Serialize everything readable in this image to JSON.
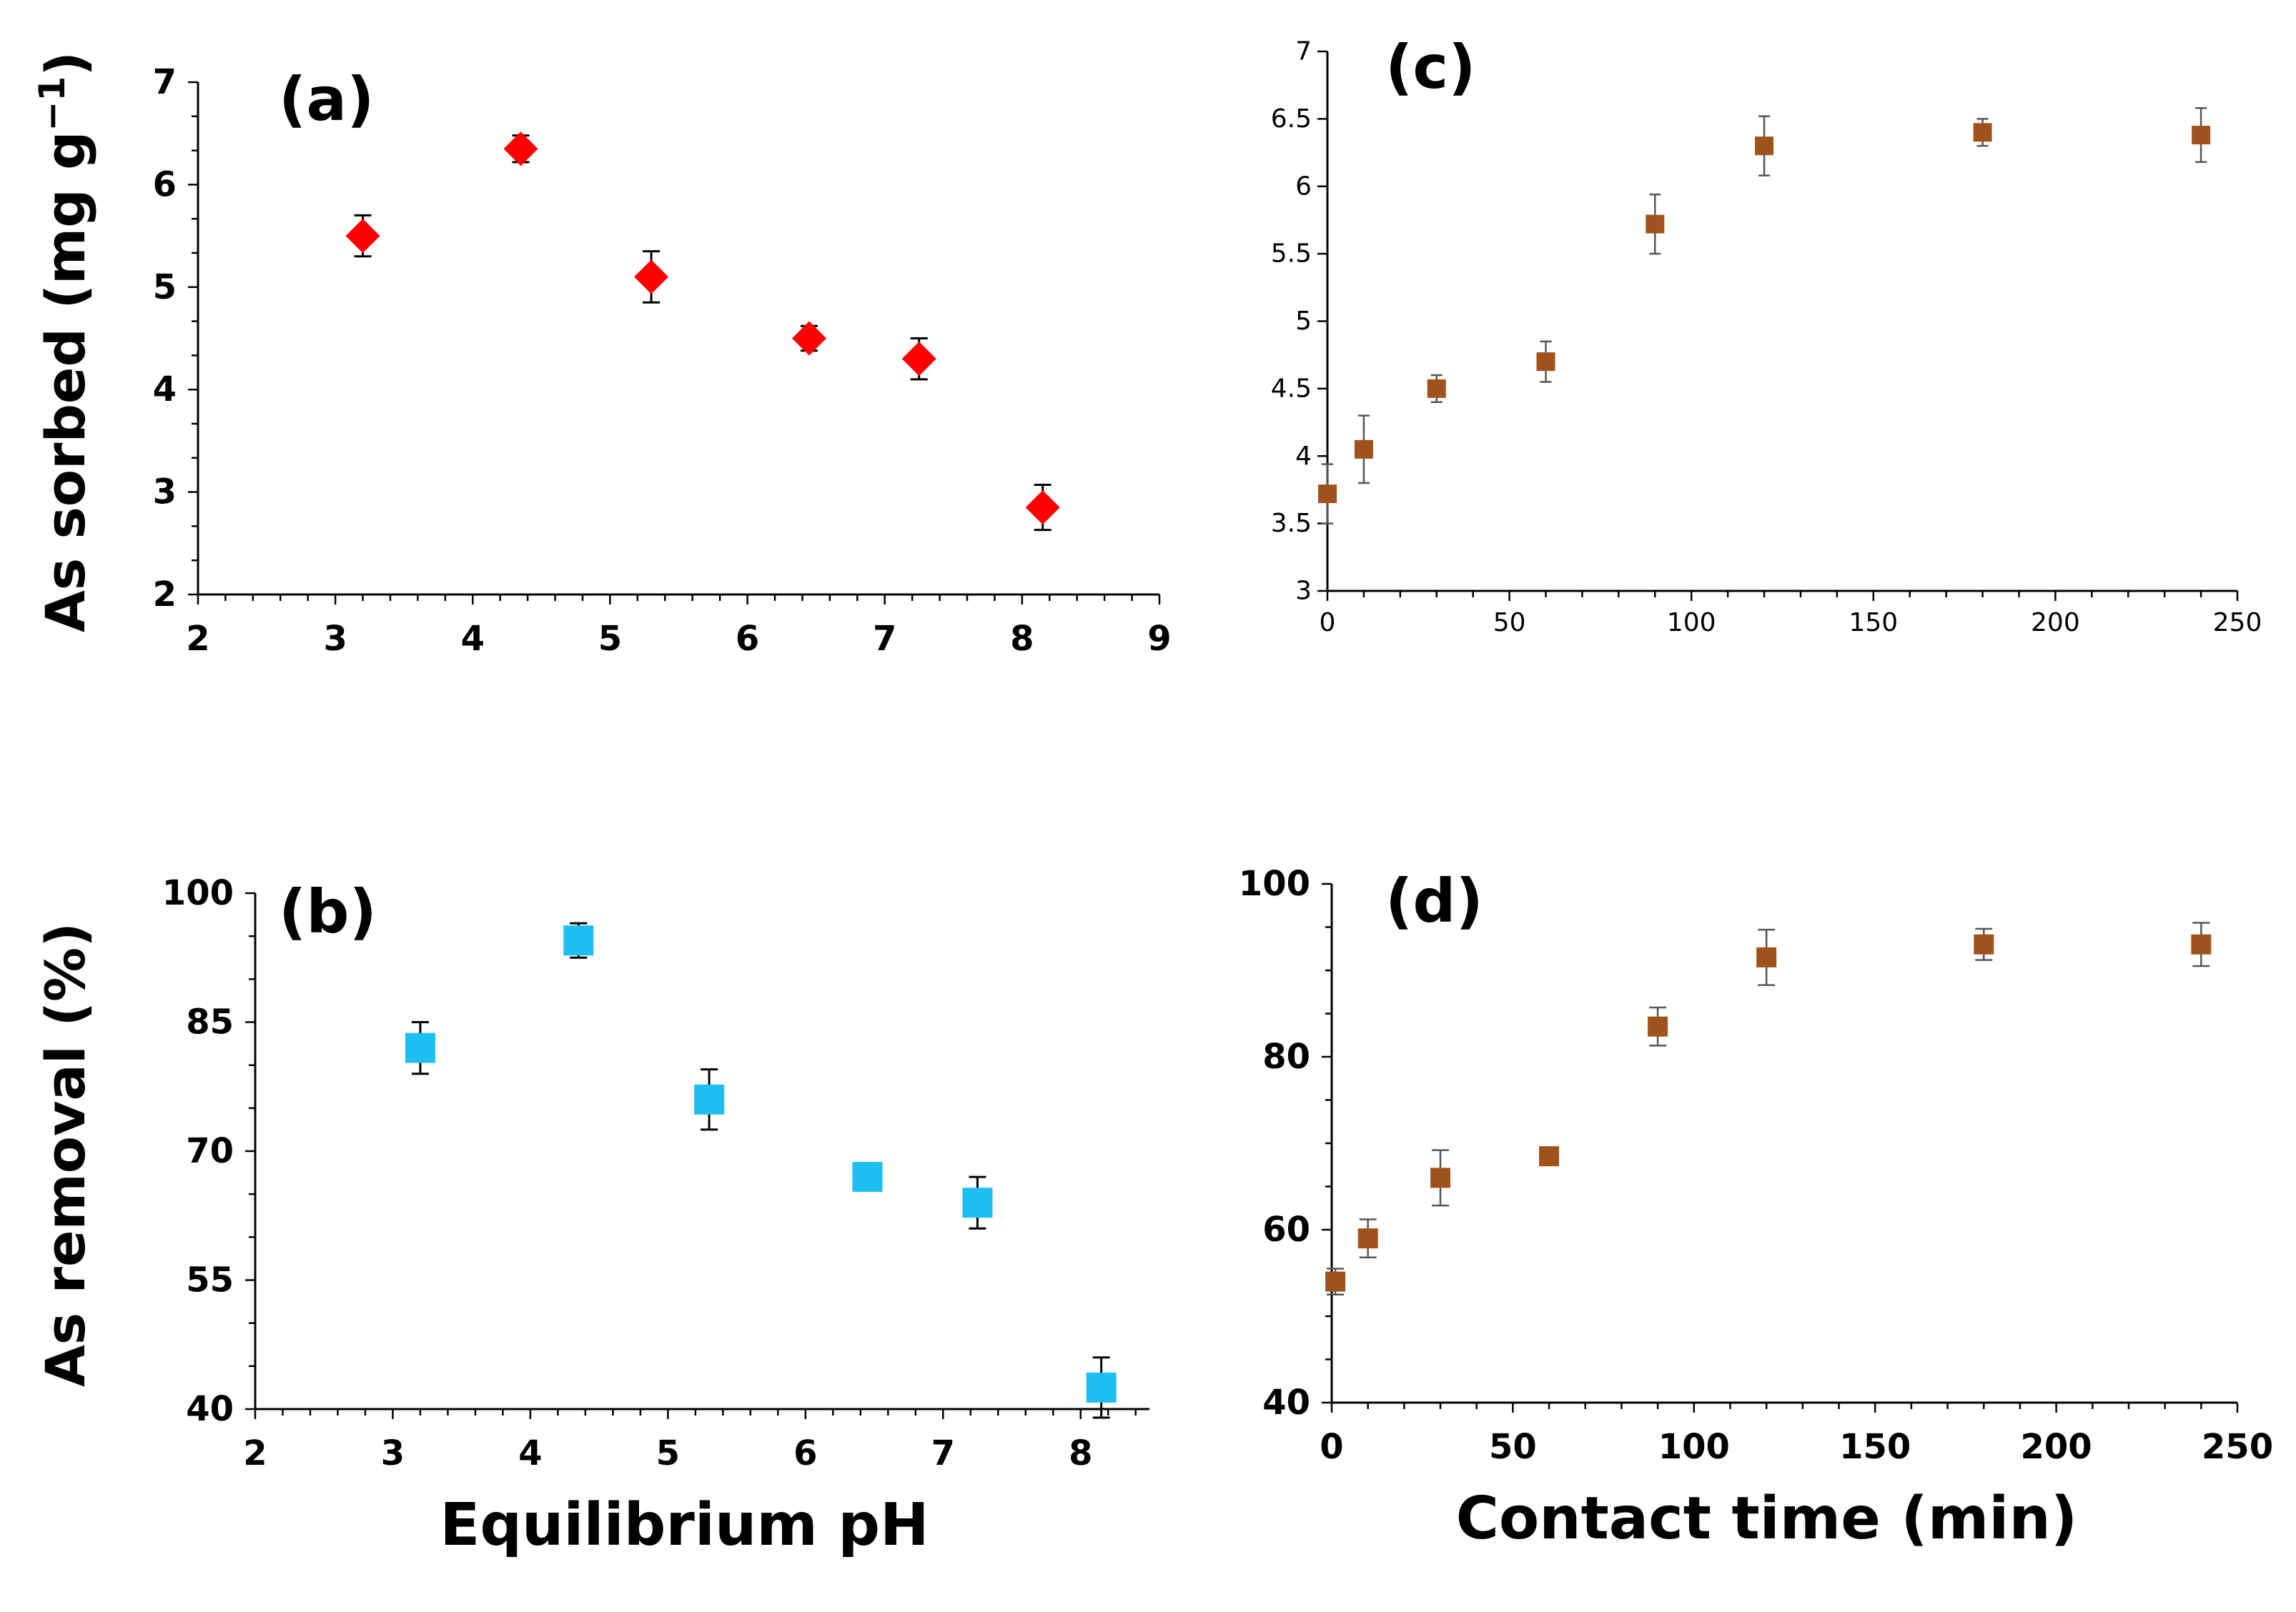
{
  "chart_data": [
    {
      "id": "a",
      "type": "scatter",
      "panel_label": "(a)",
      "ylabel": "As sorbed (mg g",
      "ylabel_sup": "−1",
      "ylabel_close": ")",
      "xlabel": "",
      "xlim": [
        2,
        9
      ],
      "ylim": [
        2,
        7
      ],
      "xticks": [
        2,
        3,
        4,
        5,
        6,
        7,
        8,
        9
      ],
      "yticks": [
        2,
        3,
        4,
        5,
        6,
        7
      ],
      "marker": "diamond",
      "color": "#ff0000",
      "x": [
        3.2,
        4.35,
        5.3,
        6.45,
        7.25,
        8.15
      ],
      "y": [
        5.5,
        6.35,
        5.1,
        4.5,
        4.3,
        2.85
      ],
      "err": [
        0.2,
        0.13,
        0.25,
        0.12,
        0.2,
        0.22
      ]
    },
    {
      "id": "b",
      "type": "scatter",
      "panel_label": "(b)",
      "ylabel": "As removal (%)",
      "xlabel": "Equilibrium pH",
      "xlim": [
        2,
        8.5
      ],
      "ylim": [
        40,
        100
      ],
      "xticks": [
        2,
        3,
        4,
        5,
        6,
        7,
        8
      ],
      "yticks": [
        40,
        55,
        70,
        85,
        100
      ],
      "marker": "square",
      "color": "#1ec0f2",
      "x": [
        3.2,
        4.35,
        5.3,
        6.45,
        7.25,
        8.15
      ],
      "y": [
        82,
        94.5,
        76,
        67,
        64,
        42.5
      ],
      "err": [
        3,
        2,
        3.5,
        1.5,
        3,
        3.5
      ]
    },
    {
      "id": "c",
      "type": "scatter",
      "panel_label": "(c)",
      "ylabel": "",
      "xlabel": "",
      "xlim": [
        0,
        250
      ],
      "ylim": [
        3,
        7
      ],
      "xticks": [
        0,
        50,
        100,
        150,
        200,
        250
      ],
      "yticks": [
        3,
        3.5,
        4,
        4.5,
        5,
        5.5,
        6,
        6.5,
        7
      ],
      "marker": "square",
      "color": "#a0521c",
      "x": [
        0,
        10,
        30,
        60,
        90,
        120,
        180,
        240
      ],
      "y": [
        3.72,
        4.05,
        4.5,
        4.7,
        5.72,
        6.3,
        6.4,
        6.38
      ],
      "err": [
        0.22,
        0.25,
        0.1,
        0.15,
        0.22,
        0.22,
        0.1,
        0.2
      ]
    },
    {
      "id": "d",
      "type": "scatter",
      "panel_label": "(d)",
      "ylabel": "",
      "xlabel": "Contact time (min)",
      "xlim": [
        0,
        250
      ],
      "ylim": [
        40,
        100
      ],
      "xticks": [
        0,
        50,
        100,
        150,
        200,
        250
      ],
      "yticks": [
        40,
        60,
        80,
        100
      ],
      "marker": "square",
      "color": "#a0521c",
      "x": [
        1,
        10,
        30,
        60,
        90,
        120,
        180,
        240
      ],
      "y": [
        54,
        59,
        66,
        68.5,
        83.5,
        91.5,
        93,
        93
      ],
      "err": [
        1.5,
        2.2,
        3.2,
        1,
        2.2,
        3.2,
        1.8,
        2.5
      ]
    }
  ]
}
